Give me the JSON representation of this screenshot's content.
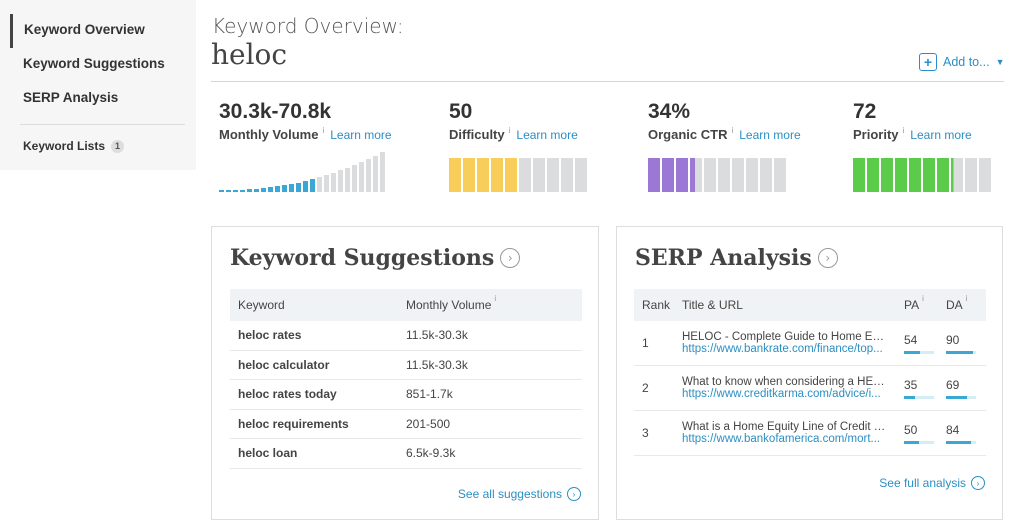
{
  "sidebar": {
    "items": [
      {
        "label": "Keyword Overview",
        "active": true
      },
      {
        "label": "Keyword Suggestions",
        "active": false
      },
      {
        "label": "SERP Analysis",
        "active": false
      }
    ],
    "lists_label": "Keyword Lists",
    "lists_count": "1"
  },
  "header": {
    "subtitle": "Keyword Overview:",
    "term": "heloc",
    "add_to": "Add to..."
  },
  "metrics": [
    {
      "value": "30.3k-70.8k",
      "label": "Monthly Volume",
      "learn": "Learn more"
    },
    {
      "value": "50",
      "label": "Difficulty",
      "learn": "Learn more",
      "fill_fraction": 0.5,
      "color": "#f9cd5a"
    },
    {
      "value": "34%",
      "label": "Organic CTR",
      "learn": "Learn more",
      "fill_fraction": 0.34,
      "color": "#9b77d6"
    },
    {
      "value": "72",
      "label": "Priority",
      "learn": "Learn more",
      "fill_fraction": 0.72,
      "color": "#5ccb4c"
    }
  ],
  "info_icon": "i",
  "suggestions": {
    "title": "Keyword Suggestions",
    "col_keyword": "Keyword",
    "col_volume": "Monthly Volume",
    "rows": [
      {
        "keyword": "heloc rates",
        "volume": "11.5k-30.3k"
      },
      {
        "keyword": "heloc calculator",
        "volume": "11.5k-30.3k"
      },
      {
        "keyword": "heloc rates today",
        "volume": "851-1.7k"
      },
      {
        "keyword": "heloc requirements",
        "volume": "201-500"
      },
      {
        "keyword": "heloc loan",
        "volume": "6.5k-9.3k"
      }
    ],
    "see_all": "See all suggestions"
  },
  "serp": {
    "title": "SERP Analysis",
    "col_rank": "Rank",
    "col_title": "Title & URL",
    "col_pa": "PA",
    "col_da": "DA",
    "rows": [
      {
        "rank": "1",
        "title": "HELOC - Complete Guide to Home Equity Line of Credit",
        "url": "https://www.bankrate.com/finance/top...",
        "pa": "54",
        "da": "90",
        "pa_fraction": 0.54,
        "da_fraction": 0.9
      },
      {
        "rank": "2",
        "title": "What to know when considering a HELOC",
        "url": "https://www.creditkarma.com/advice/i...",
        "pa": "35",
        "da": "69",
        "pa_fraction": 0.35,
        "da_fraction": 0.69
      },
      {
        "rank": "3",
        "title": "What is a Home Equity Line of Credit and how does it work",
        "url": "https://www.bankofamerica.com/mort...",
        "pa": "50",
        "da": "84",
        "pa_fraction": 0.5,
        "da_fraction": 0.84
      }
    ],
    "see_full": "See full analysis"
  },
  "colors": {
    "accent": "#2b8fc3",
    "volume_bar": "#3aa7d4",
    "bar_empty": "#dadcdd"
  }
}
